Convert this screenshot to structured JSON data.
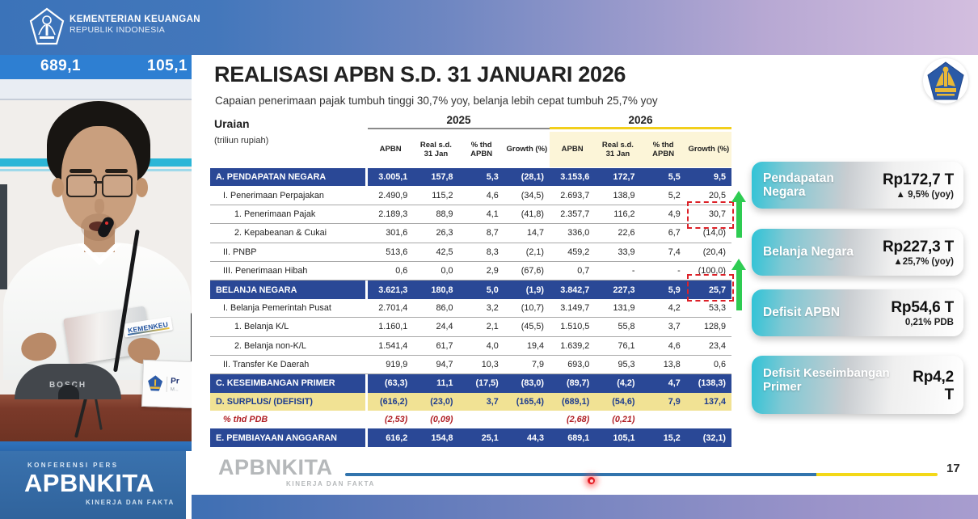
{
  "header": {
    "ministry_line1": "KEMENTERIAN KEUANGAN",
    "ministry_line2": "REPUBLIK INDONESIA"
  },
  "backdrop": {
    "screen_numbers": [
      "689,1",
      "105,1"
    ],
    "badge_text": "KEMENKEU",
    "mic_brand": "BOSCH",
    "nameplate_name": "Pr",
    "nameplate_sub": "M..."
  },
  "slide": {
    "title": "REALISASI APBN S.D. 31 JANUARI 2026",
    "subtitle": "Capaian penerimaan pajak tumbuh tinggi 30,7% yoy, belanja lebih cepat tumbuh 25,7% yoy",
    "table": {
      "row_header_title": "Uraian",
      "row_header_unit": "(triliun rupiah)",
      "year_groups": [
        "2025",
        "2026"
      ],
      "columns": [
        "APBN",
        "Real s.d. 31 Jan",
        "% thd APBN",
        "Growth (%)"
      ],
      "rows": [
        {
          "label": "A. PENDAPATAN NEGARA",
          "style": "blue",
          "values": [
            "3.005,1",
            "157,8",
            "5,3",
            "(28,1)",
            "3.153,6",
            "172,7",
            "5,5",
            "9,5"
          ]
        },
        {
          "label": "I. Penerimaan Perpajakan",
          "style": "sub1",
          "values": [
            "2.490,9",
            "115,2",
            "4,6",
            "(34,5)",
            "2.693,7",
            "138,9",
            "5,2",
            "20,5"
          ]
        },
        {
          "label": "1. Penerimaan Pajak",
          "style": "sub2",
          "values": [
            "2.189,3",
            "88,9",
            "4,1",
            "(41,8)",
            "2.357,7",
            "116,2",
            "4,9",
            "30,7"
          ]
        },
        {
          "label": "2. Kepabeanan & Cukai",
          "style": "sub2",
          "values": [
            "301,6",
            "26,3",
            "8,7",
            "14,7",
            "336,0",
            "22,6",
            "6,7",
            "(14,0)"
          ]
        },
        {
          "label": "II. PNBP",
          "style": "sub1",
          "values": [
            "513,6",
            "42,5",
            "8,3",
            "(2,1)",
            "459,2",
            "33,9",
            "7,4",
            "(20,4)"
          ]
        },
        {
          "label": "III. Penerimaan Hibah",
          "style": "sub1",
          "values": [
            "0,6",
            "0,0",
            "2,9",
            "(67,6)",
            "0,7",
            "-",
            "-",
            "(100,0)"
          ]
        },
        {
          "label": "BELANJA NEGARA",
          "style": "blue",
          "values": [
            "3.621,3",
            "180,8",
            "5,0",
            "(1,9)",
            "3.842,7",
            "227,3",
            "5,9",
            "25,7"
          ]
        },
        {
          "label": "I. Belanja Pemerintah Pusat",
          "style": "sub1",
          "values": [
            "2.701,4",
            "86,0",
            "3,2",
            "(10,7)",
            "3.149,7",
            "131,9",
            "4,2",
            "53,3"
          ]
        },
        {
          "label": "1. Belanja K/L",
          "style": "sub2",
          "values": [
            "1.160,1",
            "24,4",
            "2,1",
            "(45,5)",
            "1.510,5",
            "55,8",
            "3,7",
            "128,9"
          ]
        },
        {
          "label": "2. Belanja non-K/L",
          "style": "sub2",
          "values": [
            "1.541,4",
            "61,7",
            "4,0",
            "19,4",
            "1.639,2",
            "76,1",
            "4,6",
            "23,4"
          ]
        },
        {
          "label": "II. Transfer Ke Daerah",
          "style": "sub1",
          "values": [
            "919,9",
            "94,7",
            "10,3",
            "7,9",
            "693,0",
            "95,3",
            "13,8",
            "0,6"
          ]
        },
        {
          "label": "C. KESEIMBANGAN PRIMER",
          "style": "blue",
          "values": [
            "(63,3)",
            "11,1",
            "(17,5)",
            "(83,0)",
            "(89,7)",
            "(4,2)",
            "4,7",
            "(138,3)"
          ]
        },
        {
          "label": "D. SURPLUS/ (DEFISIT)",
          "style": "yellow",
          "values": [
            "(616,2)",
            "(23,0)",
            "3,7",
            "(165,4)",
            "(689,1)",
            "(54,6)",
            "7,9",
            "137,4"
          ]
        },
        {
          "label": "% thd PDB",
          "style": "red",
          "values": [
            "(2,53)",
            "(0,09)",
            "",
            "",
            "(2,68)",
            "(0,21)",
            "",
            ""
          ]
        },
        {
          "label": "E. PEMBIAYAAN ANGGARAN",
          "style": "blue",
          "values": [
            "616,2",
            "154,8",
            "25,1",
            "44,3",
            "689,1",
            "105,1",
            "15,2",
            "(32,1)"
          ]
        }
      ],
      "highlighted_growth_values": [
        "30,7",
        "25,7"
      ]
    },
    "cards": [
      {
        "label": "Pendapatan Negara",
        "value": "Rp172,7 T",
        "sub": "▲ 9,5% (yoy)"
      },
      {
        "label": "Belanja Negara",
        "value": "Rp227,3 T",
        "sub": "▲25,7% (yoy)"
      },
      {
        "label": "Defisit APBN",
        "value": "Rp54,6 T",
        "sub": "0,21% PDB"
      },
      {
        "label": "Defisit Keseimbangan Primer",
        "value": "Rp4,2 T",
        "sub": ""
      }
    ],
    "footer": {
      "watermark_title": "APBNKITA",
      "watermark_sub": "KINERJA DAN FAKTA",
      "page_number": "17"
    }
  },
  "branding": {
    "event_label": "KONFERENSI PERS",
    "brand_title": "APBNKITA",
    "brand_sub": "KINERJA DAN FAKTA"
  },
  "colors": {
    "table_blue_row": "#2a4896",
    "table_yellow_row": "#f1e294",
    "table_red_text": "#b01e24",
    "highlight_dashed_red": "#dd2128",
    "arrow_green": "#2ecc52",
    "card_teal": "#2fc3d6",
    "progress_blue": "#3274ad",
    "progress_yellow": "#f3d818",
    "brand_panel_blue": "#3a72ae",
    "projection_blue": "#2e7fd2",
    "year2026_underline": "#f2cf1c"
  }
}
